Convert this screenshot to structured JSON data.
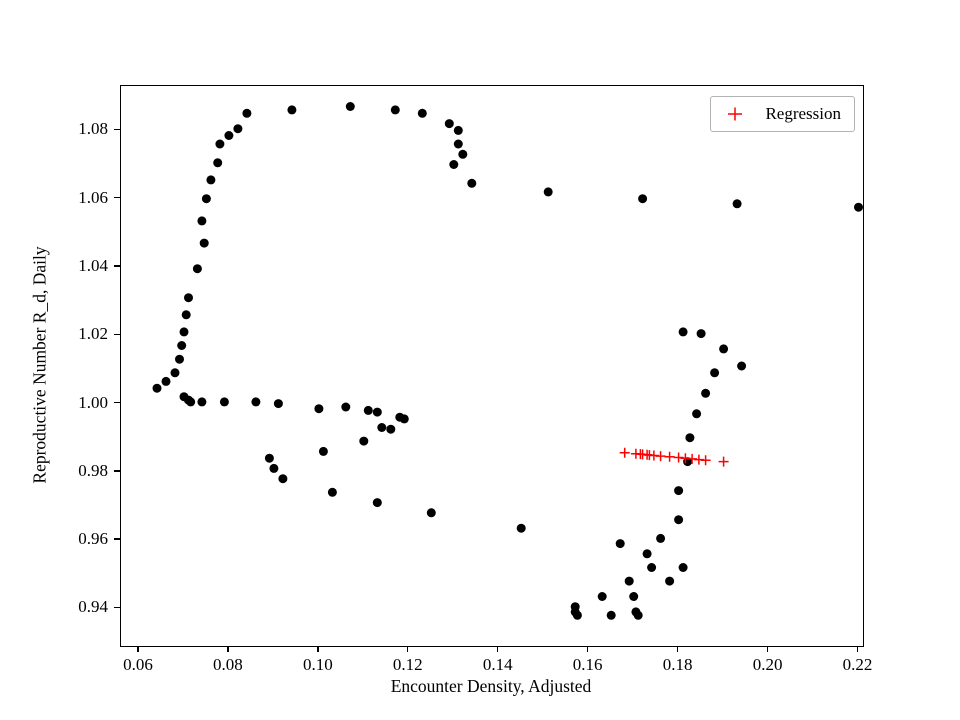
{
  "figure": {
    "background": "#ffffff"
  },
  "colors": {
    "scatter": "#000000",
    "regression": "#ff0000",
    "axis": "#000000",
    "legend_border": "#b3b3b3"
  },
  "chart_data": {
    "type": "scatter",
    "title": "",
    "xlabel": "Encounter Density, Adjusted",
    "ylabel": "Reproductive Number R_d, Daily",
    "xlim": [
      0.056,
      0.221
    ],
    "ylim": [
      0.929,
      1.093
    ],
    "xticks": [
      0.06,
      0.08,
      0.1,
      0.12,
      0.14,
      0.16,
      0.18,
      0.2,
      0.22
    ],
    "yticks": [
      0.94,
      0.96,
      0.98,
      1.0,
      1.02,
      1.04,
      1.06,
      1.08
    ],
    "grid": false,
    "legend": {
      "position": "upper right",
      "entries": [
        {
          "label": "Regression",
          "marker": "plus",
          "color": "#ff0000"
        }
      ]
    },
    "series": [
      {
        "name": "observations",
        "marker": "circle",
        "color": "#000000",
        "points": [
          [
            0.064,
            1.0045
          ],
          [
            0.066,
            1.0065
          ],
          [
            0.068,
            1.009
          ],
          [
            0.069,
            1.013
          ],
          [
            0.0695,
            1.017
          ],
          [
            0.07,
            1.021
          ],
          [
            0.0705,
            1.026
          ],
          [
            0.071,
            1.031
          ],
          [
            0.073,
            1.0395
          ],
          [
            0.0745,
            1.047
          ],
          [
            0.074,
            1.0535
          ],
          [
            0.075,
            1.06
          ],
          [
            0.076,
            1.0655
          ],
          [
            0.0775,
            1.0705
          ],
          [
            0.078,
            1.076
          ],
          [
            0.08,
            1.0785
          ],
          [
            0.082,
            1.0805
          ],
          [
            0.084,
            1.085
          ],
          [
            0.094,
            1.086
          ],
          [
            0.107,
            1.087
          ],
          [
            0.117,
            1.086
          ],
          [
            0.123,
            1.085
          ],
          [
            0.129,
            1.082
          ],
          [
            0.131,
            1.08
          ],
          [
            0.131,
            1.076
          ],
          [
            0.132,
            1.073
          ],
          [
            0.13,
            1.07
          ],
          [
            0.134,
            1.0645
          ],
          [
            0.151,
            1.062
          ],
          [
            0.172,
            1.06
          ],
          [
            0.193,
            1.0585
          ],
          [
            0.22,
            1.0575
          ],
          [
            0.07,
            1.002
          ],
          [
            0.071,
            1.001
          ],
          [
            0.0715,
            1.0005
          ],
          [
            0.074,
            1.0005
          ],
          [
            0.079,
            1.0005
          ],
          [
            0.086,
            1.0005
          ],
          [
            0.091,
            1.0
          ],
          [
            0.1,
            0.9985
          ],
          [
            0.106,
            0.999
          ],
          [
            0.111,
            0.998
          ],
          [
            0.113,
            0.9975
          ],
          [
            0.114,
            0.993
          ],
          [
            0.116,
            0.9925
          ],
          [
            0.118,
            0.996
          ],
          [
            0.119,
            0.9955
          ],
          [
            0.089,
            0.984
          ],
          [
            0.09,
            0.981
          ],
          [
            0.092,
            0.978
          ],
          [
            0.101,
            0.986
          ],
          [
            0.103,
            0.974
          ],
          [
            0.11,
            0.989
          ],
          [
            0.113,
            0.971
          ],
          [
            0.125,
            0.968
          ],
          [
            0.145,
            0.9635
          ],
          [
            0.157,
            0.9405
          ],
          [
            0.157,
            0.939
          ],
          [
            0.1575,
            0.938
          ],
          [
            0.163,
            0.9435
          ],
          [
            0.165,
            0.938
          ],
          [
            0.167,
            0.959
          ],
          [
            0.169,
            0.948
          ],
          [
            0.17,
            0.9435
          ],
          [
            0.1705,
            0.939
          ],
          [
            0.171,
            0.938
          ],
          [
            0.173,
            0.956
          ],
          [
            0.174,
            0.952
          ],
          [
            0.176,
            0.9605
          ],
          [
            0.178,
            0.948
          ],
          [
            0.18,
            0.966
          ],
          [
            0.181,
            0.952
          ],
          [
            0.18,
            0.9745
          ],
          [
            0.182,
            0.983
          ],
          [
            0.1825,
            0.99
          ],
          [
            0.184,
            0.997
          ],
          [
            0.186,
            1.003
          ],
          [
            0.188,
            1.009
          ],
          [
            0.19,
            1.016
          ],
          [
            0.194,
            1.011
          ],
          [
            0.181,
            1.021
          ],
          [
            0.185,
            1.0205
          ]
        ]
      },
      {
        "name": "Regression",
        "marker": "plus",
        "color": "#ff0000",
        "points": [
          [
            0.168,
            0.9856
          ],
          [
            0.1705,
            0.9853
          ],
          [
            0.1715,
            0.9852
          ],
          [
            0.172,
            0.9851
          ],
          [
            0.173,
            0.985
          ],
          [
            0.1735,
            0.9849
          ],
          [
            0.1745,
            0.9848
          ],
          [
            0.176,
            0.9846
          ],
          [
            0.178,
            0.9844
          ],
          [
            0.18,
            0.9842
          ],
          [
            0.1815,
            0.984
          ],
          [
            0.183,
            0.9838
          ],
          [
            0.1845,
            0.9836
          ],
          [
            0.186,
            0.9834
          ],
          [
            0.19,
            0.983
          ]
        ]
      }
    ]
  }
}
